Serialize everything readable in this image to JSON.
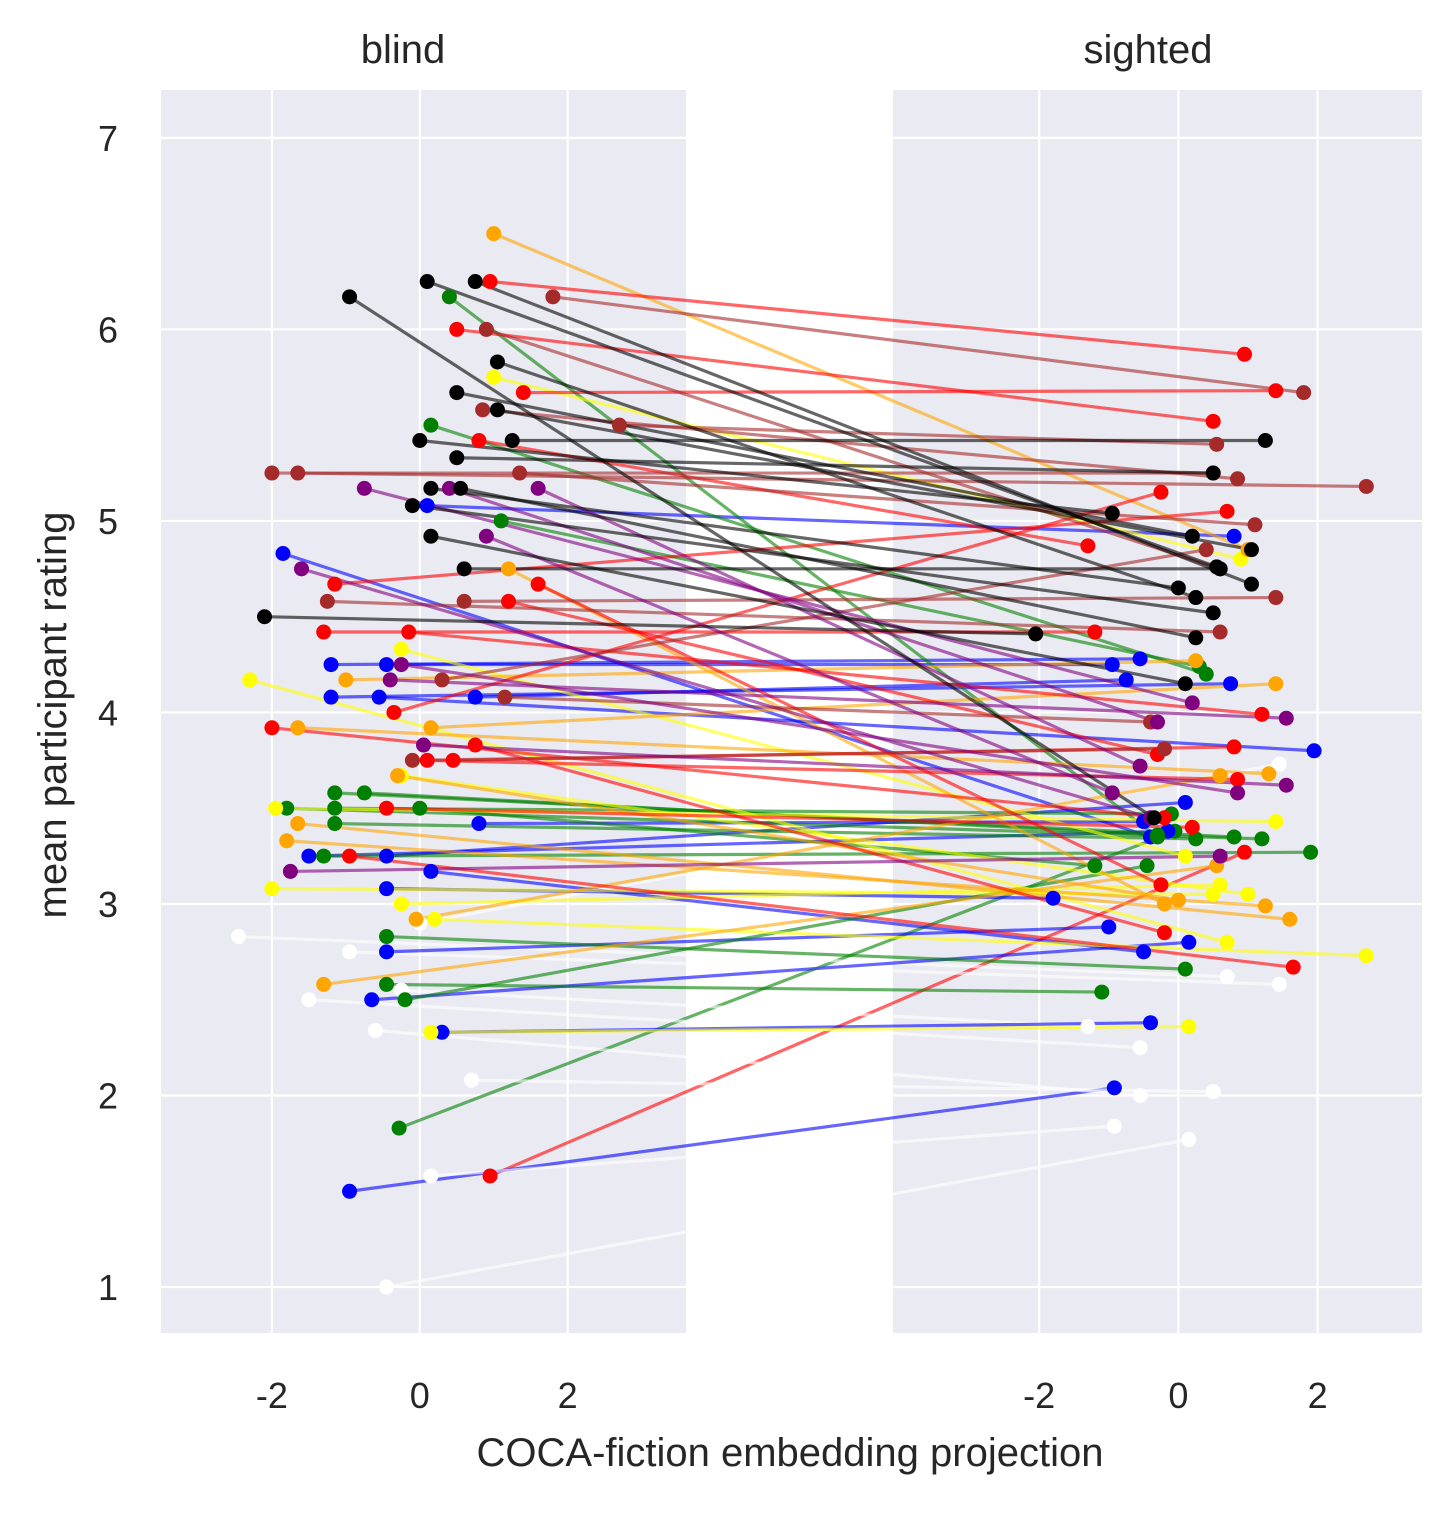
{
  "chart_data": {
    "type": "line",
    "xlabel": "COCA-fiction embedding projection",
    "ylabel": "mean participant rating",
    "ylim": [
      0.76,
      7.25
    ],
    "yticks": [
      1,
      2,
      3,
      4,
      5,
      6,
      7
    ],
    "grid": true,
    "legend": "none",
    "panels": [
      {
        "title": "blind",
        "xlim": [
          -3.5,
          3.6
        ],
        "xticks": [
          -2,
          0,
          2
        ]
      },
      {
        "title": "sighted",
        "xlim": [
          -4.1,
          3.5
        ],
        "xticks": [
          -2,
          0,
          2
        ]
      }
    ],
    "lines": [
      {
        "color": "#ff0000",
        "blind": [
          0.95,
          1.58
        ],
        "sighted": [
          0.95,
          3.27
        ]
      },
      {
        "color": "#0000ff",
        "blind": [
          -0.95,
          1.5
        ],
        "sighted": [
          -0.92,
          2.04
        ]
      },
      {
        "color": "#008000",
        "blind": [
          -0.28,
          1.83
        ],
        "sighted": [
          -0.05,
          3.38
        ]
      },
      {
        "color": "#ffffff",
        "blind": [
          -0.45,
          1.0
        ],
        "sighted": [
          0.15,
          1.77
        ]
      },
      {
        "color": "#ffffff",
        "blind": [
          0.15,
          1.58
        ],
        "sighted": [
          -0.92,
          1.84
        ]
      },
      {
        "color": "#ffffff",
        "blind": [
          0.7,
          2.08
        ],
        "sighted": [
          0.5,
          2.02
        ]
      },
      {
        "color": "#ffffff",
        "blind": [
          -0.6,
          2.34
        ],
        "sighted": [
          -0.55,
          2.0
        ]
      },
      {
        "color": "#ffffff",
        "blind": [
          -1.5,
          2.5
        ],
        "sighted": [
          -0.55,
          2.25
        ]
      },
      {
        "color": "#ffffff",
        "blind": [
          -2.45,
          2.83
        ],
        "sighted": [
          0.7,
          2.62
        ]
      },
      {
        "color": "#ffffff",
        "blind": [
          -0.95,
          2.75
        ],
        "sighted": [
          1.45,
          2.58
        ]
      },
      {
        "color": "#ffffff",
        "blind": [
          -0.25,
          2.55
        ],
        "sighted": [
          -1.3,
          2.36
        ]
      },
      {
        "color": "#ffffff",
        "blind": [
          0.0,
          2.9
        ],
        "sighted": [
          1.45,
          3.73
        ]
      },
      {
        "color": "#0000ff",
        "blind": [
          0.3,
          2.33
        ],
        "sighted": [
          -0.4,
          2.38
        ]
      },
      {
        "color": "#0000ff",
        "blind": [
          -0.65,
          2.5
        ],
        "sighted": [
          0.15,
          2.8
        ]
      },
      {
        "color": "#0000ff",
        "blind": [
          -0.45,
          2.75
        ],
        "sighted": [
          -1.0,
          2.88
        ]
      },
      {
        "color": "#0000ff",
        "blind": [
          -0.45,
          3.08
        ],
        "sighted": [
          -1.8,
          3.03
        ]
      },
      {
        "color": "#0000ff",
        "blind": [
          0.15,
          3.17
        ],
        "sighted": [
          -0.5,
          2.75
        ]
      },
      {
        "color": "#0000ff",
        "blind": [
          -1.5,
          3.25
        ],
        "sighted": [
          -0.15,
          3.38
        ]
      },
      {
        "color": "#0000ff",
        "blind": [
          -0.45,
          3.25
        ],
        "sighted": [
          0.1,
          3.53
        ]
      },
      {
        "color": "#0000ff",
        "blind": [
          0.8,
          3.42
        ],
        "sighted": [
          -0.5,
          3.43
        ]
      },
      {
        "color": "#0000ff",
        "blind": [
          -1.2,
          4.08
        ],
        "sighted": [
          0.75,
          4.15
        ]
      },
      {
        "color": "#0000ff",
        "blind": [
          -0.55,
          4.08
        ],
        "sighted": [
          1.95,
          3.8
        ]
      },
      {
        "color": "#0000ff",
        "blind": [
          -1.2,
          4.25
        ],
        "sighted": [
          -0.55,
          4.28
        ]
      },
      {
        "color": "#0000ff",
        "blind": [
          -0.45,
          4.25
        ],
        "sighted": [
          -0.95,
          4.25
        ]
      },
      {
        "color": "#0000ff",
        "blind": [
          0.75,
          4.08
        ],
        "sighted": [
          -0.75,
          4.17
        ]
      },
      {
        "color": "#0000ff",
        "blind": [
          -1.85,
          4.83
        ],
        "sighted": [
          -0.4,
          3.35
        ]
      },
      {
        "color": "#0000ff",
        "blind": [
          0.1,
          5.08
        ],
        "sighted": [
          0.8,
          4.92
        ]
      },
      {
        "color": "#008000",
        "blind": [
          -0.45,
          2.58
        ],
        "sighted": [
          -1.1,
          2.54
        ]
      },
      {
        "color": "#008000",
        "blind": [
          -0.2,
          2.5
        ],
        "sighted": [
          -0.45,
          3.2
        ]
      },
      {
        "color": "#008000",
        "blind": [
          -0.45,
          2.83
        ],
        "sighted": [
          0.1,
          2.66
        ]
      },
      {
        "color": "#008000",
        "blind": [
          -1.3,
          3.25
        ],
        "sighted": [
          1.9,
          3.27
        ]
      },
      {
        "color": "#008000",
        "blind": [
          -1.8,
          3.5
        ],
        "sighted": [
          1.2,
          3.34
        ]
      },
      {
        "color": "#008000",
        "blind": [
          -1.15,
          3.42
        ],
        "sighted": [
          0.25,
          3.34
        ]
      },
      {
        "color": "#008000",
        "blind": [
          -1.15,
          3.5
        ],
        "sighted": [
          -0.1,
          3.47
        ]
      },
      {
        "color": "#008000",
        "blind": [
          -1.15,
          3.58
        ],
        "sighted": [
          0.8,
          3.35
        ]
      },
      {
        "color": "#008000",
        "blind": [
          -0.75,
          3.58
        ],
        "sighted": [
          -0.3,
          3.36
        ]
      },
      {
        "color": "#008000",
        "blind": [
          0.0,
          3.5
        ],
        "sighted": [
          -1.2,
          3.2
        ]
      },
      {
        "color": "#008000",
        "blind": [
          0.15,
          5.5
        ],
        "sighted": [
          0.4,
          4.2
        ]
      },
      {
        "color": "#008000",
        "blind": [
          1.1,
          5.0
        ],
        "sighted": [
          0.3,
          4.24
        ]
      },
      {
        "color": "#008000",
        "blind": [
          0.4,
          6.17
        ],
        "sighted": [
          -0.3,
          3.35
        ]
      },
      {
        "color": "#ffff00",
        "blind": [
          -2.3,
          4.17
        ],
        "sighted": [
          0.7,
          2.8
        ]
      },
      {
        "color": "#ffff00",
        "blind": [
          -2.0,
          3.08
        ],
        "sighted": [
          0.5,
          3.05
        ]
      },
      {
        "color": "#ffff00",
        "blind": [
          -1.95,
          3.5
        ],
        "sighted": [
          1.4,
          3.43
        ]
      },
      {
        "color": "#ffff00",
        "blind": [
          -0.25,
          3.0
        ],
        "sighted": [
          0.6,
          3.1
        ]
      },
      {
        "color": "#ffff00",
        "blind": [
          0.15,
          2.33
        ],
        "sighted": [
          0.15,
          2.36
        ]
      },
      {
        "color": "#ffff00",
        "blind": [
          0.2,
          2.92
        ],
        "sighted": [
          2.7,
          2.73
        ]
      },
      {
        "color": "#ffff00",
        "blind": [
          -0.25,
          3.67
        ],
        "sighted": [
          1.0,
          3.05
        ]
      },
      {
        "color": "#ffff00",
        "blind": [
          -0.25,
          4.33
        ],
        "sighted": [
          0.1,
          3.25
        ]
      },
      {
        "color": "#ffff00",
        "blind": [
          1.0,
          5.75
        ],
        "sighted": [
          0.9,
          4.8
        ]
      },
      {
        "color": "#ffa500",
        "blind": [
          -1.3,
          2.58
        ],
        "sighted": [
          0.55,
          3.2
        ]
      },
      {
        "color": "#ffa500",
        "blind": [
          -1.8,
          3.33
        ],
        "sighted": [
          1.25,
          2.99
        ]
      },
      {
        "color": "#ffa500",
        "blind": [
          -1.65,
          3.42
        ],
        "sighted": [
          1.6,
          2.92
        ]
      },
      {
        "color": "#ffa500",
        "blind": [
          -1.65,
          3.92
        ],
        "sighted": [
          1.3,
          3.68
        ]
      },
      {
        "color": "#ffa500",
        "blind": [
          -0.05,
          2.92
        ],
        "sighted": [
          0.6,
          3.67
        ]
      },
      {
        "color": "#ffa500",
        "blind": [
          -0.3,
          3.67
        ],
        "sighted": [
          0.0,
          3.02
        ]
      },
      {
        "color": "#ffa500",
        "blind": [
          0.15,
          3.92
        ],
        "sighted": [
          1.4,
          4.15
        ]
      },
      {
        "color": "#ffa500",
        "blind": [
          -1.0,
          4.17
        ],
        "sighted": [
          0.25,
          4.27
        ]
      },
      {
        "color": "#ffa500",
        "blind": [
          1.2,
          4.75
        ],
        "sighted": [
          -0.2,
          3.0
        ]
      },
      {
        "color": "#ffa500",
        "blind": [
          1.0,
          6.5
        ],
        "sighted": [
          1.0,
          4.85
        ]
      },
      {
        "color": "#ff0000",
        "blind": [
          -2.0,
          3.92
        ],
        "sighted": [
          -0.2,
          3.45
        ]
      },
      {
        "color": "#ff0000",
        "blind": [
          -0.95,
          3.25
        ],
        "sighted": [
          1.65,
          2.67
        ]
      },
      {
        "color": "#ff0000",
        "blind": [
          -0.45,
          3.5
        ],
        "sighted": [
          0.2,
          3.4
        ]
      },
      {
        "color": "#ff0000",
        "blind": [
          0.1,
          3.75
        ],
        "sighted": [
          0.85,
          3.65
        ]
      },
      {
        "color": "#ff0000",
        "blind": [
          0.45,
          3.75
        ],
        "sighted": [
          0.8,
          3.82
        ]
      },
      {
        "color": "#ff0000",
        "blind": [
          0.75,
          3.83
        ],
        "sighted": [
          -0.2,
          2.85
        ]
      },
      {
        "color": "#ff0000",
        "blind": [
          -1.3,
          4.42
        ],
        "sighted": [
          -1.2,
          4.42
        ]
      },
      {
        "color": "#ff0000",
        "blind": [
          -1.15,
          4.67
        ],
        "sighted": [
          0.7,
          5.05
        ]
      },
      {
        "color": "#ff0000",
        "blind": [
          -0.15,
          4.42
        ],
        "sighted": [
          1.2,
          3.99
        ]
      },
      {
        "color": "#ff0000",
        "blind": [
          1.2,
          4.58
        ],
        "sighted": [
          -0.3,
          3.78
        ]
      },
      {
        "color": "#ff0000",
        "blind": [
          1.6,
          4.67
        ],
        "sighted": [
          -0.25,
          3.1
        ]
      },
      {
        "color": "#ff0000",
        "blind": [
          0.5,
          6.0
        ],
        "sighted": [
          0.5,
          5.52
        ]
      },
      {
        "color": "#ff0000",
        "blind": [
          0.95,
          6.25
        ],
        "sighted": [
          0.95,
          5.87
        ]
      },
      {
        "color": "#ff0000",
        "blind": [
          1.4,
          5.67
        ],
        "sighted": [
          1.4,
          5.68
        ]
      },
      {
        "color": "#ff0000",
        "blind": [
          0.8,
          5.42
        ],
        "sighted": [
          -1.3,
          4.87
        ]
      },
      {
        "color": "#ff0000",
        "blind": [
          -0.35,
          4.0
        ],
        "sighted": [
          -0.25,
          5.15
        ]
      },
      {
        "color": "#a52a2a",
        "blind": [
          -2.0,
          5.25
        ],
        "sighted": [
          0.5,
          5.25
        ]
      },
      {
        "color": "#a52a2a",
        "blind": [
          -1.65,
          5.25
        ],
        "sighted": [
          2.7,
          5.18
        ]
      },
      {
        "color": "#a52a2a",
        "blind": [
          -1.25,
          4.58
        ],
        "sighted": [
          0.6,
          4.42
        ]
      },
      {
        "color": "#a52a2a",
        "blind": [
          -0.1,
          3.75
        ],
        "sighted": [
          -0.2,
          3.81
        ]
      },
      {
        "color": "#a52a2a",
        "blind": [
          0.3,
          4.17
        ],
        "sighted": [
          0.4,
          4.85
        ]
      },
      {
        "color": "#a52a2a",
        "blind": [
          0.6,
          4.58
        ],
        "sighted": [
          1.4,
          4.6
        ]
      },
      {
        "color": "#a52a2a",
        "blind": [
          1.15,
          4.08
        ],
        "sighted": [
          -0.4,
          3.95
        ]
      },
      {
        "color": "#a52a2a",
        "blind": [
          1.35,
          5.25
        ],
        "sighted": [
          1.1,
          4.98
        ]
      },
      {
        "color": "#a52a2a",
        "blind": [
          0.85,
          5.58
        ],
        "sighted": [
          0.85,
          5.22
        ]
      },
      {
        "color": "#a52a2a",
        "blind": [
          0.9,
          6.0
        ],
        "sighted": [
          0.6,
          4.75
        ]
      },
      {
        "color": "#a52a2a",
        "blind": [
          1.8,
          6.17
        ],
        "sighted": [
          1.8,
          5.67
        ]
      },
      {
        "color": "#a52a2a",
        "blind": [
          2.7,
          5.5
        ],
        "sighted": [
          0.55,
          5.4
        ]
      },
      {
        "color": "#800080",
        "blind": [
          -1.75,
          3.17
        ],
        "sighted": [
          0.6,
          3.25
        ]
      },
      {
        "color": "#800080",
        "blind": [
          -1.6,
          4.75
        ],
        "sighted": [
          -0.4,
          3.45
        ]
      },
      {
        "color": "#800080",
        "blind": [
          -0.75,
          5.17
        ],
        "sighted": [
          0.2,
          4.05
        ]
      },
      {
        "color": "#800080",
        "blind": [
          -0.4,
          4.17
        ],
        "sighted": [
          1.55,
          3.97
        ]
      },
      {
        "color": "#800080",
        "blind": [
          -0.25,
          4.25
        ],
        "sighted": [
          0.85,
          3.58
        ]
      },
      {
        "color": "#800080",
        "blind": [
          0.05,
          3.83
        ],
        "sighted": [
          1.55,
          3.62
        ]
      },
      {
        "color": "#800080",
        "blind": [
          0.4,
          5.17
        ],
        "sighted": [
          -0.3,
          3.95
        ]
      },
      {
        "color": "#800080",
        "blind": [
          1.6,
          5.17
        ],
        "sighted": [
          -0.55,
          3.72
        ]
      },
      {
        "color": "#800080",
        "blind": [
          0.9,
          4.92
        ],
        "sighted": [
          -0.95,
          3.58
        ]
      },
      {
        "color": "#000000",
        "blind": [
          -2.1,
          4.5
        ],
        "sighted": [
          -2.05,
          4.41
        ]
      },
      {
        "color": "#000000",
        "blind": [
          -0.95,
          6.17
        ],
        "sighted": [
          -0.35,
          3.45
        ]
      },
      {
        "color": "#000000",
        "blind": [
          0.1,
          6.25
        ],
        "sighted": [
          0.55,
          4.76
        ]
      },
      {
        "color": "#000000",
        "blind": [
          0.75,
          6.25
        ],
        "sighted": [
          1.05,
          4.67
        ]
      },
      {
        "color": "#000000",
        "blind": [
          0.5,
          5.67
        ],
        "sighted": [
          0.2,
          4.92
        ]
      },
      {
        "color": "#000000",
        "blind": [
          1.05,
          5.83
        ],
        "sighted": [
          0.25,
          4.6
        ]
      },
      {
        "color": "#000000",
        "blind": [
          1.05,
          5.58
        ],
        "sighted": [
          1.05,
          4.85
        ]
      },
      {
        "color": "#000000",
        "blind": [
          1.25,
          5.42
        ],
        "sighted": [
          1.25,
          5.42
        ]
      },
      {
        "color": "#000000",
        "blind": [
          0.5,
          5.33
        ],
        "sighted": [
          0.5,
          5.25
        ]
      },
      {
        "color": "#000000",
        "blind": [
          0.0,
          5.42
        ],
        "sighted": [
          -0.95,
          5.04
        ]
      },
      {
        "color": "#000000",
        "blind": [
          -0.1,
          5.08
        ],
        "sighted": [
          0.5,
          4.52
        ]
      },
      {
        "color": "#000000",
        "blind": [
          0.15,
          5.17
        ],
        "sighted": [
          0.0,
          4.65
        ]
      },
      {
        "color": "#000000",
        "blind": [
          0.15,
          4.92
        ],
        "sighted": [
          0.1,
          4.15
        ]
      },
      {
        "color": "#000000",
        "blind": [
          0.6,
          4.75
        ],
        "sighted": [
          0.6,
          4.75
        ]
      },
      {
        "color": "#000000",
        "blind": [
          0.55,
          5.17
        ],
        "sighted": [
          0.25,
          4.39
        ]
      }
    ]
  }
}
